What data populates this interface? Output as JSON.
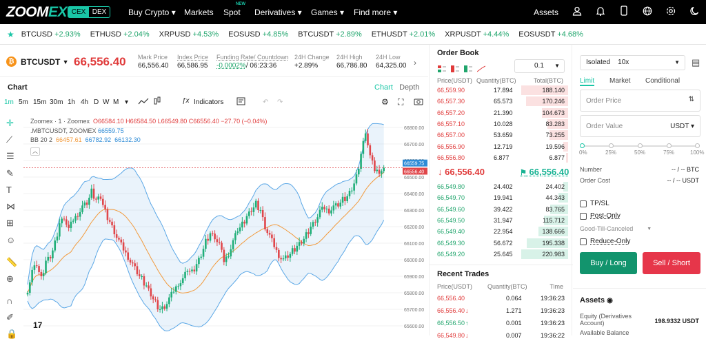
{
  "nav": {
    "logo_a": "ZOOM",
    "logo_b": "EX",
    "cex": "CEX",
    "dex": "DEX",
    "items": [
      "Buy Crypto ▾",
      "Markets",
      "Spot",
      "Derivatives ▾",
      "Games ▾",
      "Find more ▾"
    ],
    "new_badge": "NEW",
    "assets": "Assets",
    "icons": [
      "user-icon",
      "bell-icon",
      "phone-icon",
      "globe-icon",
      "gear-icon",
      "moon-icon"
    ]
  },
  "ticker": [
    {
      "sym": "BTCUSD",
      "chg": "+2.93%"
    },
    {
      "sym": "ETHUSD",
      "chg": "+2.04%"
    },
    {
      "sym": "XRPUSD",
      "chg": "+4.53%"
    },
    {
      "sym": "EOSUSD",
      "chg": "+4.85%"
    },
    {
      "sym": "BTCUSDT",
      "chg": "+2.89%"
    },
    {
      "sym": "ETHUSDT",
      "chg": "+2.01%"
    },
    {
      "sym": "XRPUSDT",
      "chg": "+4.44%"
    },
    {
      "sym": "EOSUSDT",
      "chg": "+4.68%"
    }
  ],
  "pair": {
    "symbol": "BTCUSDT",
    "last": "66,556.40",
    "mark_label": "Mark Price",
    "mark": "66,556.40",
    "index_label": "Index Price",
    "index": "66,586.95",
    "funding_label": "Funding Rate/ Countdown",
    "funding": "-0.0002%",
    "countdown": "/ 06:23:36",
    "chg_label": "24H Change",
    "chg": "+2.89%",
    "high_label": "24H High",
    "high": "66,786.80",
    "low_label": "24H Low",
    "low": "64,325.00"
  },
  "chart": {
    "tab": "Chart",
    "toggle_chart": "Chart",
    "toggle_depth": "Depth",
    "intervals": [
      "1m",
      "5m",
      "15m",
      "30m",
      "1h",
      "4h",
      "D",
      "W",
      "M"
    ],
    "dropdown": "▾",
    "indicators": "Indicators",
    "legend1_name": "Zoomex · 1 · Zoomex",
    "legend1_o": "O66584.10",
    "legend1_h": "H66584.50",
    "legend1_l": "L66549.80",
    "legend1_c": "C66556.40",
    "legend1_chg": "−27.70 (−0.04%)",
    "legend2": ".MBTCUSDT, ZOOMEX",
    "legend2_v": "66559.75",
    "legend3": "BB 20 2",
    "bb_mid": "66457.61",
    "bb_up": "66782.92",
    "bb_low": "66132.30",
    "last_tag": "66559.75",
    "last_tag2": "66556.40",
    "tv_logo": "17"
  },
  "chart_data": {
    "type": "candlestick",
    "ylim": [
      65600,
      66850
    ],
    "yticks": [
      66800,
      66700,
      66600,
      66500,
      66400,
      66300,
      66200,
      66100,
      66000,
      65900,
      65800,
      65700,
      65600
    ],
    "close": [
      65820,
      65930,
      65970,
      65880,
      65990,
      66020,
      66100,
      66220,
      66260,
      66180,
      66240,
      66280,
      66320,
      66340,
      66410,
      66360,
      66380,
      66290,
      66230,
      66170,
      66110,
      66060,
      66020,
      65970,
      65920,
      65880,
      65840,
      65790,
      65740,
      65700,
      65720,
      65760,
      65810,
      65860,
      65880,
      65940,
      65920,
      65970,
      66030,
      66110,
      66160,
      66140,
      66090,
      65990,
      66040,
      66110,
      66180,
      66210,
      66260,
      66300,
      66340,
      66300,
      66200,
      66140,
      66080,
      66030,
      66000,
      66020,
      66050,
      66080,
      66110,
      66150,
      66200,
      66240,
      66290,
      66310,
      66300,
      66320,
      66330,
      66360,
      66380,
      66430,
      66500,
      66640,
      66780,
      66620,
      66540,
      66540,
      66556
    ]
  },
  "orderbook": {
    "title": "Order Book",
    "precision": "0.1",
    "col_price": "Price(USDT)",
    "col_qty": "Quantity(BTC)",
    "col_total": "Total(BTC)",
    "asks": [
      [
        "66,559.90",
        "17.894",
        "188.140"
      ],
      [
        "66,557.30",
        "65.573",
        "170.246"
      ],
      [
        "66,557.20",
        "21.390",
        "104.673"
      ],
      [
        "66,557.10",
        "10.028",
        "83.283"
      ],
      [
        "66,557.00",
        "53.659",
        "73.255"
      ],
      [
        "66,556.90",
        "12.719",
        "19.596"
      ],
      [
        "66,556.80",
        "6.877",
        "6.877"
      ]
    ],
    "ask_depth": [
      1.0,
      0.9,
      0.56,
      0.44,
      0.39,
      0.1,
      0.04
    ],
    "last": "66,556.40",
    "mark": "66,556.40",
    "bids": [
      [
        "66,549.80",
        "24.402",
        "24.402"
      ],
      [
        "66,549.70",
        "19.941",
        "44.343"
      ],
      [
        "66,549.60",
        "39.422",
        "83.765"
      ],
      [
        "66,549.50",
        "31.947",
        "115.712"
      ],
      [
        "66,549.40",
        "22.954",
        "138.666"
      ],
      [
        "66,549.30",
        "56.672",
        "195.338"
      ],
      [
        "66,549.20",
        "25.645",
        "220.983"
      ]
    ],
    "bid_depth": [
      0.11,
      0.2,
      0.38,
      0.52,
      0.63,
      0.88,
      1.0
    ]
  },
  "trades": {
    "title": "Recent Trades",
    "col_price": "Price(USDT)",
    "col_qty": "Quantity(BTC)",
    "col_time": "Time",
    "rows": [
      [
        "66,556.40",
        "0.064",
        "19:36:23",
        "red",
        ""
      ],
      [
        "66,556.40",
        "1.271",
        "19:36:23",
        "red",
        "↓"
      ],
      [
        "66,556.50",
        "0.001",
        "19:36:23",
        "green",
        "↑"
      ],
      [
        "66,549.80",
        "0.007",
        "19:36:22",
        "red",
        "↓"
      ]
    ]
  },
  "order": {
    "margin": "Isolated",
    "leverage": "10x",
    "tabs": [
      "Limit",
      "Market",
      "Conditional"
    ],
    "price_ph": "Order Price",
    "value_ph": "Order Value",
    "unit": "USDT ▾",
    "pcts": [
      "0%",
      "25%",
      "50%",
      "75%",
      "100%"
    ],
    "number_label": "Number",
    "number_val": "-- / --",
    "number_unit": "BTC",
    "cost_label": "Order Cost",
    "cost_val": "-- / --",
    "cost_unit": "USDT",
    "tpsl": "TP/SL",
    "post": "Post-Only",
    "gtc": "Good-Till-Canceled",
    "reduce": "Reduce-Only",
    "buy": "Buy / Long",
    "sell": "Sell / Short",
    "assets": "Assets",
    "equity_label": "Equity (Derivatives Account)",
    "equity": "198.9332 USDT",
    "avail": "Available Balance"
  }
}
